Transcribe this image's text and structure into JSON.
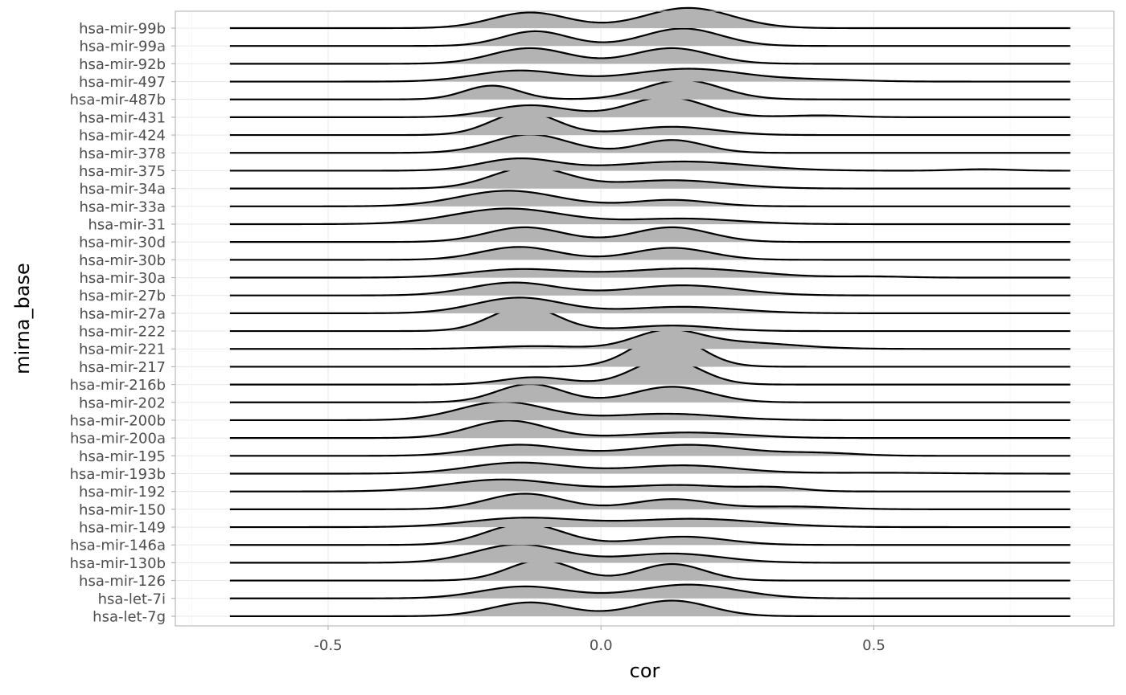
{
  "chart_data": {
    "type": "ridgeline",
    "xlabel": "cor",
    "ylabel": "mirna_base",
    "xlim": [
      -0.78,
      0.94
    ],
    "x_ticks": [
      -0.5,
      0.0,
      0.5
    ],
    "x_tick_labels": [
      "-0.5",
      "0.0",
      "0.5"
    ],
    "density_range": [
      -0.68,
      0.86
    ],
    "grid": true,
    "fill_color": "#b3b3b3",
    "line_color": "#000000",
    "grid_color": "#ebebeb",
    "categories": [
      "hsa-mir-99b",
      "hsa-mir-99a",
      "hsa-mir-92b",
      "hsa-mir-497",
      "hsa-mir-487b",
      "hsa-mir-431",
      "hsa-mir-424",
      "hsa-mir-378",
      "hsa-mir-375",
      "hsa-mir-34a",
      "hsa-mir-33a",
      "hsa-mir-31",
      "hsa-mir-30d",
      "hsa-mir-30b",
      "hsa-mir-30a",
      "hsa-mir-27b",
      "hsa-mir-27a",
      "hsa-mir-222",
      "hsa-mir-221",
      "hsa-mir-217",
      "hsa-mir-216b",
      "hsa-mir-202",
      "hsa-mir-200b",
      "hsa-mir-200a",
      "hsa-mir-195",
      "hsa-mir-193b",
      "hsa-mir-192",
      "hsa-mir-150",
      "hsa-mir-149",
      "hsa-mir-146a",
      "hsa-mir-130b",
      "hsa-mir-126",
      "hsa-let-7i",
      "hsa-let-7g"
    ],
    "series": [
      {
        "name": "hsa-mir-99b",
        "peaks": [
          [
            -0.13,
            0.07,
            0.85
          ],
          [
            0.16,
            0.08,
            1.1
          ]
        ]
      },
      {
        "name": "hsa-mir-99a",
        "peaks": [
          [
            -0.12,
            0.06,
            0.8
          ],
          [
            0.15,
            0.07,
            0.95
          ]
        ]
      },
      {
        "name": "hsa-mir-92b",
        "peaks": [
          [
            -0.13,
            0.07,
            0.85
          ],
          [
            0.13,
            0.07,
            0.85
          ]
        ]
      },
      {
        "name": "hsa-mir-497",
        "peaks": [
          [
            -0.15,
            0.08,
            0.6
          ],
          [
            0.16,
            0.1,
            0.7
          ],
          [
            0.4,
            0.08,
            0.1
          ]
        ]
      },
      {
        "name": "hsa-mir-487b",
        "peaks": [
          [
            -0.2,
            0.05,
            0.75
          ],
          [
            0.15,
            0.07,
            1.05
          ]
        ]
      },
      {
        "name": "hsa-mir-431",
        "peaks": [
          [
            -0.13,
            0.07,
            0.65
          ],
          [
            0.12,
            0.07,
            1.1
          ],
          [
            0.4,
            0.06,
            0.1
          ]
        ]
      },
      {
        "name": "hsa-mir-424",
        "peaks": [
          [
            -0.14,
            0.06,
            1.25
          ],
          [
            0.13,
            0.08,
            0.45
          ]
        ]
      },
      {
        "name": "hsa-mir-378",
        "peaks": [
          [
            -0.13,
            0.07,
            1.0
          ],
          [
            0.13,
            0.06,
            0.7
          ]
        ]
      },
      {
        "name": "hsa-mir-375",
        "peaks": [
          [
            -0.15,
            0.07,
            0.65
          ],
          [
            0.15,
            0.12,
            0.5
          ],
          [
            0.7,
            0.05,
            0.08
          ]
        ]
      },
      {
        "name": "hsa-mir-34a",
        "peaks": [
          [
            -0.13,
            0.07,
            1.15
          ],
          [
            0.13,
            0.1,
            0.45
          ]
        ]
      },
      {
        "name": "hsa-mir-33a",
        "peaks": [
          [
            -0.17,
            0.09,
            0.85
          ],
          [
            0.13,
            0.07,
            0.35
          ]
        ]
      },
      {
        "name": "hsa-mir-31",
        "peaks": [
          [
            -0.17,
            0.1,
            0.85
          ],
          [
            0.15,
            0.1,
            0.3
          ]
        ]
      },
      {
        "name": "hsa-mir-30d",
        "peaks": [
          [
            -0.14,
            0.07,
            0.8
          ],
          [
            0.13,
            0.07,
            0.8
          ]
        ]
      },
      {
        "name": "hsa-mir-30b",
        "peaks": [
          [
            -0.15,
            0.07,
            0.7
          ],
          [
            0.13,
            0.07,
            0.65
          ]
        ]
      },
      {
        "name": "hsa-mir-30a",
        "peaks": [
          [
            -0.15,
            0.09,
            0.45
          ],
          [
            0.16,
            0.12,
            0.5
          ],
          [
            0.5,
            0.06,
            0.06
          ]
        ]
      },
      {
        "name": "hsa-mir-27b",
        "peaks": [
          [
            -0.16,
            0.08,
            0.7
          ],
          [
            0.15,
            0.1,
            0.55
          ]
        ]
      },
      {
        "name": "hsa-mir-27a",
        "peaks": [
          [
            -0.15,
            0.08,
            0.85
          ],
          [
            0.15,
            0.1,
            0.35
          ]
        ]
      },
      {
        "name": "hsa-mir-222",
        "peaks": [
          [
            -0.14,
            0.06,
            1.35
          ],
          [
            0.13,
            0.08,
            0.3
          ]
        ]
      },
      {
        "name": "hsa-mir-221",
        "peaks": [
          [
            -0.12,
            0.08,
            0.15
          ],
          [
            0.12,
            0.06,
            0.9
          ],
          [
            0.25,
            0.1,
            0.35
          ]
        ]
      },
      {
        "name": "hsa-mir-217",
        "peaks": [
          [
            0.12,
            0.06,
            1.75
          ]
        ]
      },
      {
        "name": "hsa-mir-216b",
        "peaks": [
          [
            -0.12,
            0.06,
            0.4
          ],
          [
            0.12,
            0.06,
            1.4
          ]
        ]
      },
      {
        "name": "hsa-mir-202",
        "peaks": [
          [
            -0.13,
            0.06,
            1.0
          ],
          [
            0.13,
            0.07,
            0.85
          ]
        ]
      },
      {
        "name": "hsa-mir-200b",
        "peaks": [
          [
            -0.18,
            0.08,
            1.0
          ],
          [
            0.12,
            0.1,
            0.35
          ]
        ]
      },
      {
        "name": "hsa-mir-200a",
        "peaks": [
          [
            -0.17,
            0.07,
            0.95
          ],
          [
            0.16,
            0.1,
            0.3
          ]
        ]
      },
      {
        "name": "hsa-mir-195",
        "peaks": [
          [
            -0.15,
            0.08,
            0.6
          ],
          [
            0.16,
            0.1,
            0.6
          ],
          [
            0.4,
            0.07,
            0.15
          ]
        ]
      },
      {
        "name": "hsa-mir-193b",
        "peaks": [
          [
            -0.15,
            0.09,
            0.6
          ],
          [
            0.15,
            0.1,
            0.45
          ],
          [
            0.5,
            0.12,
            0.05
          ]
        ]
      },
      {
        "name": "hsa-mir-192",
        "peaks": [
          [
            -0.18,
            0.1,
            0.65
          ],
          [
            0.14,
            0.1,
            0.35
          ],
          [
            0.32,
            0.05,
            0.18
          ]
        ]
      },
      {
        "name": "hsa-mir-150",
        "peaks": [
          [
            -0.14,
            0.07,
            0.85
          ],
          [
            0.13,
            0.07,
            0.55
          ],
          [
            0.35,
            0.08,
            0.15
          ]
        ]
      },
      {
        "name": "hsa-mir-149",
        "peaks": [
          [
            -0.14,
            0.1,
            0.5
          ],
          [
            0.17,
            0.12,
            0.45
          ]
        ]
      },
      {
        "name": "hsa-mir-146a",
        "peaks": [
          [
            -0.14,
            0.07,
            1.15
          ],
          [
            0.15,
            0.08,
            0.45
          ]
        ]
      },
      {
        "name": "hsa-mir-130b",
        "peaks": [
          [
            -0.15,
            0.08,
            1.0
          ],
          [
            0.13,
            0.09,
            0.5
          ]
        ]
      },
      {
        "name": "hsa-mir-126",
        "peaks": [
          [
            -0.11,
            0.06,
            1.1
          ],
          [
            0.13,
            0.06,
            0.9
          ]
        ]
      },
      {
        "name": "hsa-let-7i",
        "peaks": [
          [
            -0.14,
            0.08,
            0.65
          ],
          [
            0.16,
            0.09,
            0.75
          ]
        ]
      },
      {
        "name": "hsa-let-7g",
        "peaks": [
          [
            -0.13,
            0.07,
            0.75
          ],
          [
            0.13,
            0.07,
            0.85
          ]
        ]
      }
    ]
  }
}
